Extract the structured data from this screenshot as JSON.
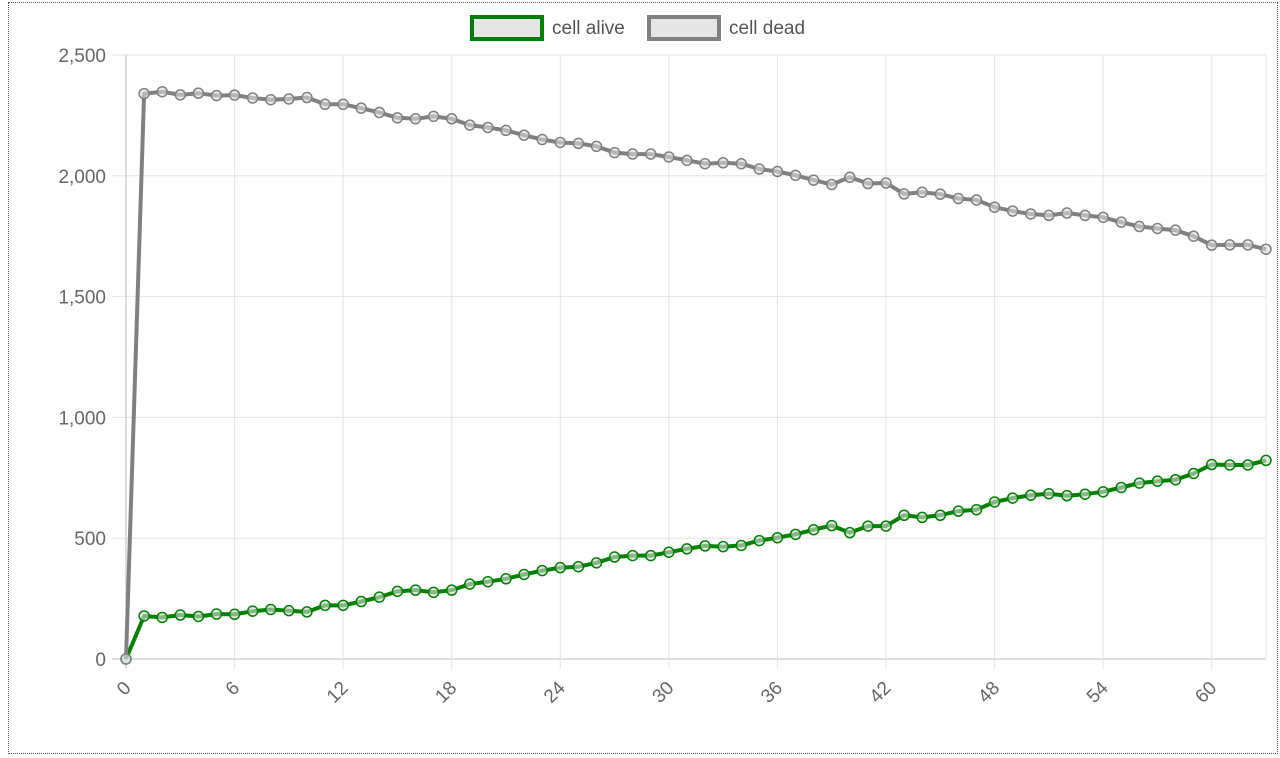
{
  "chart_data": {
    "type": "line",
    "title": "",
    "xlabel": "",
    "ylabel": "",
    "ylim": [
      0,
      2500
    ],
    "yticks": [
      "0",
      "500",
      "1,000",
      "1,500",
      "2,000",
      "2,500"
    ],
    "ytick_values": [
      0,
      500,
      1000,
      1500,
      2000,
      2500
    ],
    "xticks": [
      "0",
      "6",
      "12",
      "18",
      "24",
      "30",
      "36",
      "42",
      "48",
      "54",
      "60"
    ],
    "xtick_values": [
      0,
      6,
      12,
      18,
      24,
      30,
      36,
      42,
      48,
      54,
      60
    ],
    "xlim": [
      0,
      63
    ],
    "grid": true,
    "legend_position": "top-center",
    "legend": [
      "cell alive",
      "cell dead"
    ],
    "series": [
      {
        "name": "cell alive",
        "color": "#008000",
        "values": [
          0,
          178,
          172,
          182,
          176,
          186,
          185,
          198,
          205,
          200,
          195,
          222,
          222,
          238,
          256,
          280,
          285,
          276,
          285,
          310,
          320,
          332,
          350,
          366,
          378,
          382,
          398,
          422,
          428,
          428,
          442,
          456,
          468,
          465,
          470,
          490,
          502,
          516,
          535,
          552,
          523,
          550,
          550,
          595,
          586,
          595,
          612,
          618,
          650,
          666,
          678,
          684,
          676,
          682,
          692,
          710,
          728,
          736,
          742,
          768,
          805,
          803,
          803,
          822
        ]
      },
      {
        "name": "cell dead",
        "color": "#808080",
        "values": [
          0,
          2340,
          2348,
          2335,
          2342,
          2332,
          2334,
          2322,
          2315,
          2318,
          2324,
          2296,
          2296,
          2280,
          2262,
          2240,
          2236,
          2246,
          2236,
          2210,
          2200,
          2188,
          2168,
          2150,
          2138,
          2134,
          2122,
          2096,
          2090,
          2090,
          2078,
          2064,
          2050,
          2054,
          2050,
          2028,
          2018,
          2002,
          1982,
          1964,
          1994,
          1968,
          1970,
          1925,
          1932,
          1924,
          1906,
          1900,
          1870,
          1854,
          1842,
          1836,
          1846,
          1836,
          1828,
          1808,
          1790,
          1782,
          1775,
          1750,
          1713,
          1714,
          1714,
          1696
        ]
      }
    ]
  }
}
